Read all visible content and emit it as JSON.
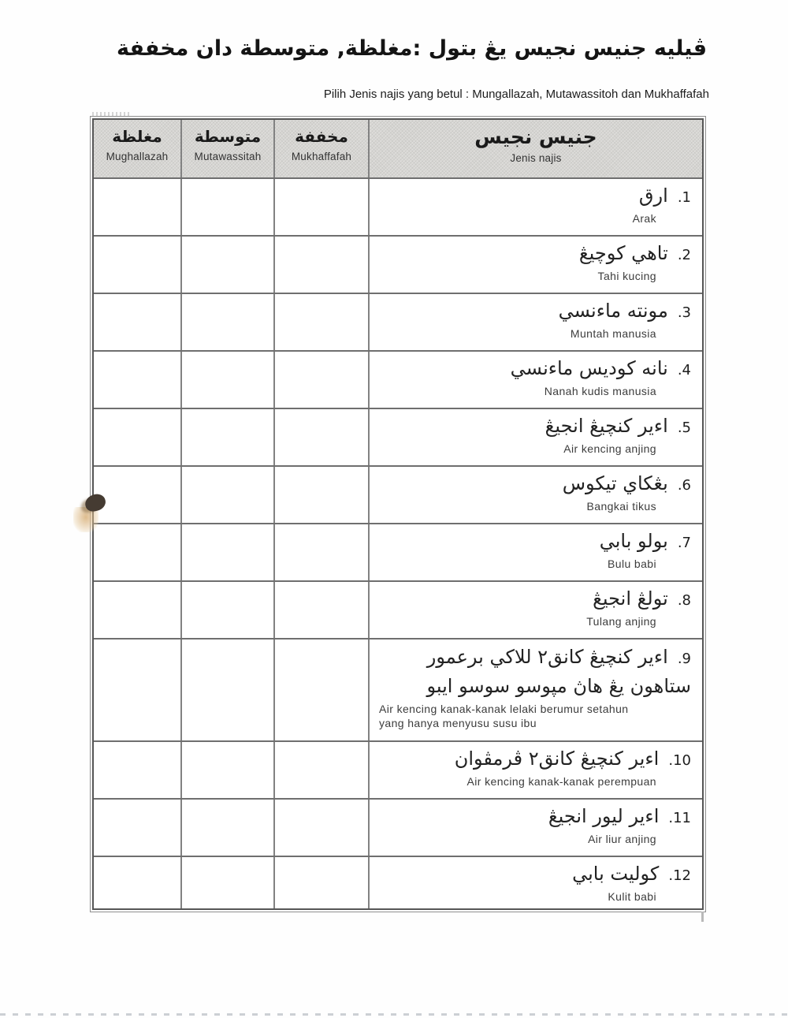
{
  "page": {
    "title_jawi": "ڤيليه جنيس نجيس يڠ بتول :مغلظة, متوسطة دان مخففة",
    "title_latin": "Pilih Jenis najis yang betul : Mungallazah, Mutawassitoh dan Mukhaffafah"
  },
  "colors": {
    "header_bg": "#d5d4d1",
    "table_border": "#565656",
    "text": "#222222"
  },
  "table": {
    "columns": [
      {
        "jawi": "مغلظة",
        "latin": "Mughallazah"
      },
      {
        "jawi": "متوسطة",
        "latin": "Mutawassitah"
      },
      {
        "jawi": "مخففة",
        "latin": "Mukhaffafah"
      },
      {
        "jawi": "جنيس نجيس",
        "latin": "Jenis najis"
      }
    ],
    "rows": [
      {
        "num": "1.",
        "jawi": "ارق",
        "latin": "Arak"
      },
      {
        "num": "2.",
        "jawi": "تاهي كوچيڠ",
        "latin": "Tahi kucing"
      },
      {
        "num": "3.",
        "jawi": "مونته ماءنسي",
        "latin": "Muntah manusia"
      },
      {
        "num": "4.",
        "jawi": "نانه كوديس ماءنسي",
        "latin": "Nanah kudis manusia"
      },
      {
        "num": "5.",
        "jawi": "اءير كنچيڠ انجيڠ",
        "latin": "Air kencing anjing"
      },
      {
        "num": "6.",
        "jawi": "بڠكاي تيكوس",
        "latin": "Bangkai tikus"
      },
      {
        "num": "7.",
        "jawi": "بولو بابي",
        "latin": "Bulu babi"
      },
      {
        "num": "8.",
        "jawi": "تولڠ انجيڠ",
        "latin": "Tulang anjing"
      },
      {
        "num": "9.",
        "jawi": "اءير كنچيڠ كانق٢ للاكي برعمور ستاهون يڠ هاڽ مڽوسو سوسو ايبو",
        "latin": "Air kencing kanak-kanak lelaki berumur setahun yang hanya menyusu susu ibu"
      },
      {
        "num": "10.",
        "jawi": "اءير كنچيڠ كانق٢ ڤرمڤوان",
        "latin": "Air kencing kanak-kanak perempuan"
      },
      {
        "num": "11.",
        "jawi": "اءير ليور انجيڠ",
        "latin": "Air liur anjing"
      },
      {
        "num": "12.",
        "jawi": "كوليت بابي",
        "latin": "Kulit babi"
      }
    ]
  }
}
